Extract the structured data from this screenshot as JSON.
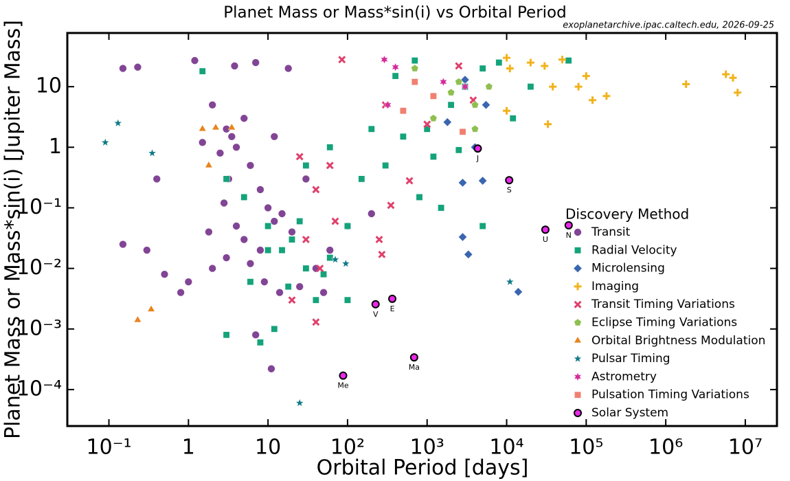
{
  "chart_data": {
    "type": "scatter",
    "title": "Planet Mass or Mass*sin(i) vs Orbital Period",
    "subtitle": "exoplanetarchive.ipac.caltech.edu, 2026-09-25",
    "x_label": "Orbital Period [days]",
    "y_label": "Planet Mass or Mass*sin(i) [Jupiter Mass]",
    "x_log": true,
    "y_log": true,
    "xlim": [
      0.03,
      25000000
    ],
    "ylim": [
      2.5e-05,
      77
    ],
    "xticks": [
      {
        "value": 0.1,
        "label": "10⁻¹"
      },
      1,
      10,
      {
        "value": 100,
        "label": "10²"
      },
      {
        "value": 1000,
        "label": "10³"
      },
      {
        "value": 10000,
        "label": "10⁴"
      },
      {
        "value": 100000,
        "label": "10⁵"
      },
      {
        "value": 1000000,
        "label": "10⁶"
      },
      {
        "value": 10000000,
        "label": "10⁷"
      }
    ],
    "yticks": [
      {
        "value": 0.0001,
        "label": "10⁻⁴"
      },
      {
        "value": 0.001,
        "label": "10⁻³"
      },
      {
        "value": 0.01,
        "label": "10⁻²"
      },
      {
        "value": 0.1,
        "label": "10⁻¹"
      },
      1,
      10
    ],
    "legend_title": "Discovery Method",
    "legend_position": "lower right",
    "series": [
      {
        "name": "Transit",
        "color": "#7b3b8f",
        "marker": "circle",
        "x": [
          0.15,
          0.23,
          1.2,
          2,
          3,
          3.5,
          4,
          2.5,
          5,
          6,
          8,
          1.5,
          3.2,
          10,
          12,
          15,
          20,
          5,
          8,
          3,
          2,
          1,
          0.8,
          0.5,
          0.3,
          0.15,
          4,
          6,
          9,
          14,
          25,
          40,
          60,
          100,
          200,
          30,
          18,
          7,
          3.8,
          12,
          0.4,
          11,
          7,
          50,
          1.8,
          2.8
        ],
        "values": [
          20,
          21,
          27,
          5,
          2,
          1.5,
          1,
          0.8,
          3,
          0.5,
          0.2,
          1.2,
          0.3,
          0.1,
          0.06,
          0.08,
          0.04,
          0.03,
          0.02,
          0.015,
          0.01,
          0.006,
          0.004,
          0.008,
          0.02,
          0.025,
          0.05,
          0.012,
          0.006,
          0.004,
          0.005,
          0.01,
          0.02,
          0.05,
          0.08,
          0.3,
          20,
          25,
          22,
          1.5,
          0.3,
          0.00022,
          0.0008,
          0.004,
          0.04,
          0.12
        ]
      },
      {
        "name": "Radial Velocity",
        "color": "#14a37a",
        "marker": "square",
        "x": [
          1.5,
          3,
          5,
          10,
          15,
          20,
          30,
          50,
          100,
          300,
          500,
          1000,
          2000,
          3000,
          5000,
          8000,
          20000,
          60000,
          200,
          150,
          800,
          1500,
          5000,
          3,
          8,
          12,
          40,
          60,
          25,
          400,
          700,
          60,
          30,
          12000,
          1200,
          2500,
          10,
          6,
          18,
          100
        ],
        "values": [
          18,
          0.3,
          0.15,
          0.05,
          0.02,
          0.03,
          0.01,
          0.008,
          0.05,
          0.5,
          1.5,
          2,
          5,
          10,
          20,
          25,
          10,
          27,
          2,
          0.3,
          0.15,
          0.1,
          0.05,
          0.0008,
          0.0006,
          0.001,
          0.003,
          0.015,
          0.06,
          15,
          27,
          1,
          0.5,
          3,
          0.7,
          0.9,
          0.02,
          0.006,
          0.005,
          0.003
        ]
      },
      {
        "name": "Microlensing",
        "color": "#3a66b0",
        "marker": "diamond",
        "x": [
          2800,
          3300,
          5000,
          2800,
          4000,
          1800,
          14000,
          5500,
          3000
        ],
        "values": [
          0.033,
          0.017,
          0.28,
          0.26,
          1,
          2.6,
          0.0041,
          5,
          13
        ]
      },
      {
        "name": "Imaging",
        "color": "#f2b21b",
        "marker": "plus",
        "x": [
          10000,
          30000,
          50000,
          100000,
          120000,
          180000,
          80000,
          1800000,
          5700000,
          7000000,
          8000000,
          33000,
          10000,
          11000,
          20000,
          38000
        ],
        "values": [
          30,
          22,
          28,
          15,
          6,
          7,
          10,
          11,
          16,
          14,
          8,
          2.4,
          4,
          20,
          25,
          10
        ]
      },
      {
        "name": "Transit Timing Variations",
        "color": "#e0406a",
        "marker": "x",
        "x": [
          85,
          25,
          40,
          70,
          30,
          45,
          40,
          20,
          350,
          250,
          270,
          1000,
          600,
          3800,
          2500,
          300,
          60
        ],
        "values": [
          28,
          0.7,
          0.2,
          0.06,
          0.03,
          0.01,
          0.0013,
          0.003,
          0.11,
          0.03,
          0.017,
          2.4,
          0.28,
          6,
          22,
          5,
          0.5
        ]
      },
      {
        "name": "Eclipse Timing Variations",
        "color": "#8fbf50",
        "marker": "pentagon",
        "x": [
          2000,
          4000,
          2500,
          700,
          1200,
          4000,
          6000
        ],
        "values": [
          8,
          5,
          12,
          20,
          3,
          2,
          10
        ]
      },
      {
        "name": "Orbital Brightness Modulation",
        "color": "#e8841c",
        "marker": "triangle",
        "x": [
          0.23,
          0.34,
          1.5,
          2.2,
          3.5,
          1.8
        ],
        "values": [
          0.0014,
          0.0021,
          2,
          2.1,
          2.1,
          0.5
        ]
      },
      {
        "name": "Pulsar Timing",
        "color": "#0f7a86",
        "marker": "star",
        "x": [
          0.09,
          0.13,
          0.35,
          25,
          70,
          95,
          11000
        ],
        "values": [
          1.2,
          2.5,
          0.8,
          6e-05,
          0.014,
          0.012,
          0.006
        ]
      },
      {
        "name": "Astrometry",
        "color": "#d62a9a",
        "marker": "star6",
        "x": [
          290,
          320,
          1600,
          3000,
          400
        ],
        "values": [
          28,
          5,
          12,
          10,
          21
        ]
      },
      {
        "name": "Pulsation Timing Variations",
        "color": "#f08070",
        "marker": "square",
        "x": [
          700,
          1200,
          500,
          2800
        ],
        "values": [
          12,
          7,
          4,
          1.8
        ]
      },
      {
        "name": "Solar System",
        "color": "#e81ce8",
        "marker": "ring",
        "x": [
          88,
          225,
          365,
          687,
          4333,
          10759,
          30687,
          60190
        ],
        "values": [
          0.00017,
          0.00256,
          0.00315,
          0.00034,
          0.954,
          0.286,
          0.0436,
          0.0515
        ],
        "point_labels": [
          "Me",
          "V",
          "E",
          "Ma",
          "J",
          "S",
          "U",
          "N"
        ]
      }
    ]
  }
}
